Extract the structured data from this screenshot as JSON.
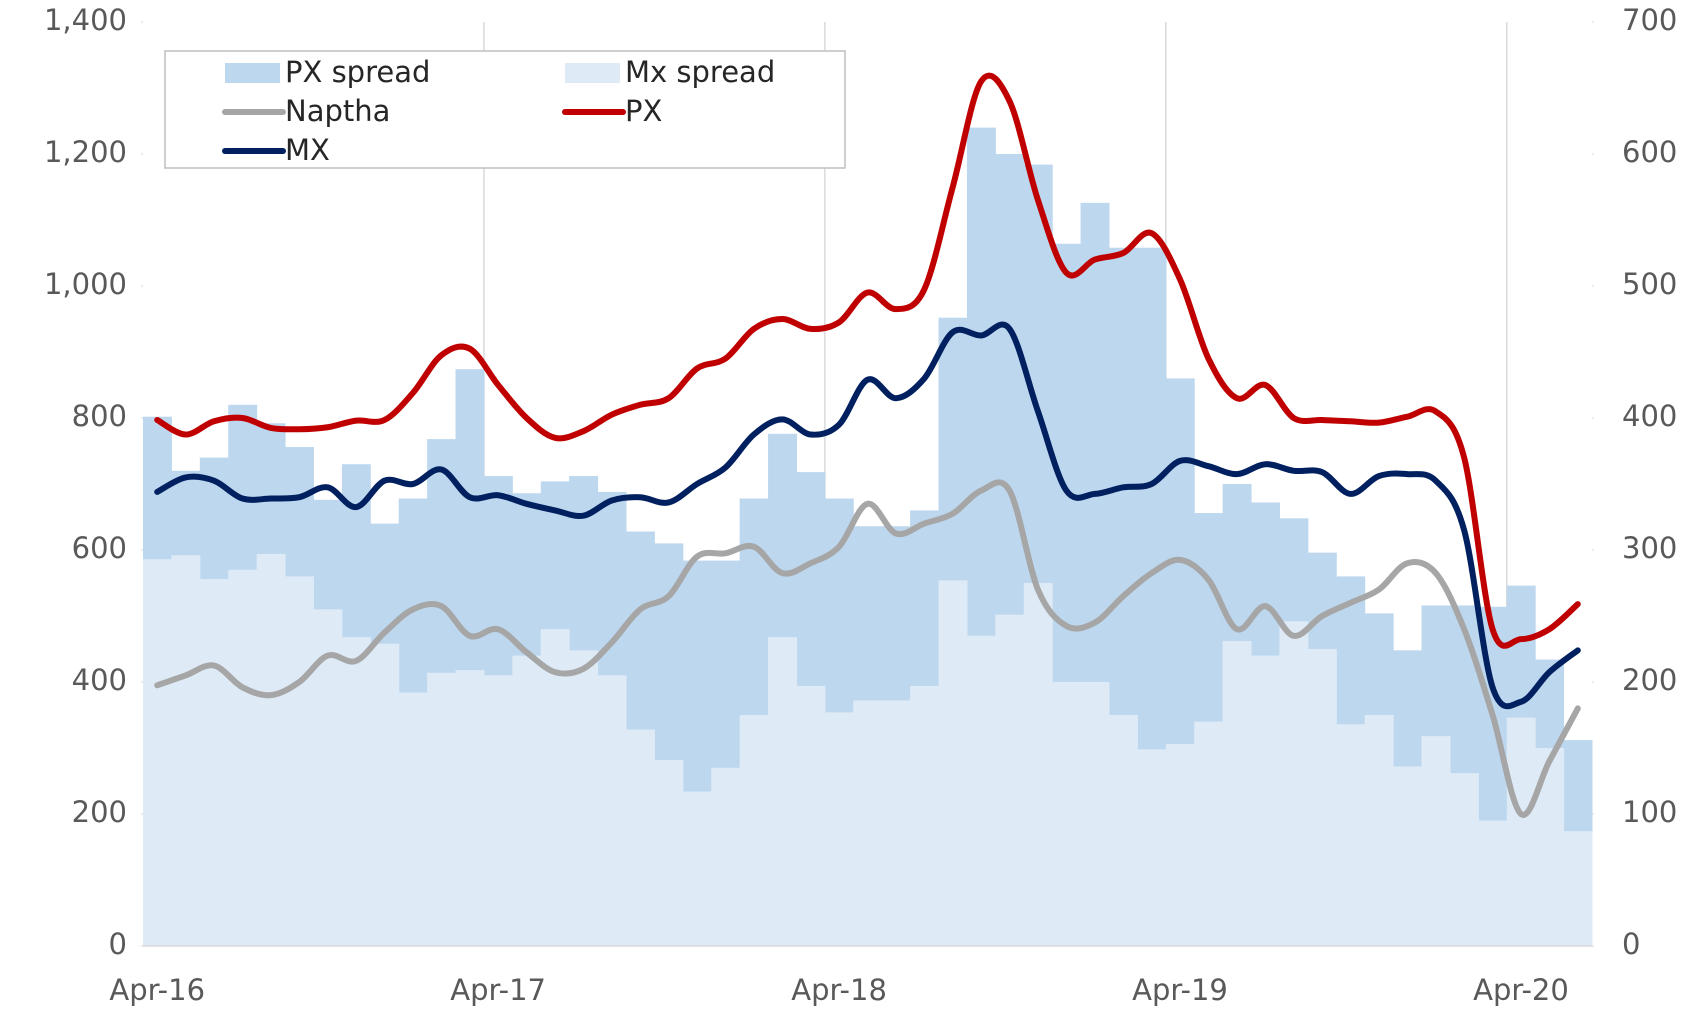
{
  "chart_data": {
    "type": "bar-line",
    "categories": [
      "Apr-16",
      null,
      null,
      null,
      null,
      null,
      null,
      null,
      null,
      null,
      null,
      null,
      "Apr-17",
      null,
      null,
      null,
      null,
      null,
      null,
      null,
      null,
      null,
      null,
      null,
      "Apr-18",
      null,
      null,
      null,
      null,
      null,
      null,
      null,
      null,
      null,
      null,
      null,
      "Apr-19",
      null,
      null,
      null,
      null,
      null,
      null,
      null,
      null,
      null,
      null,
      null,
      "Apr-20",
      null,
      null
    ],
    "ylim": [
      0,
      1400
    ],
    "yticks": [
      0,
      200,
      400,
      600,
      800,
      {
        "value": 1000,
        "label": "1,000"
      },
      {
        "value": 1200,
        "label": "1,200"
      },
      {
        "value": 1400,
        "label": "1,400"
      }
    ],
    "y2lim": [
      0,
      700
    ],
    "y2ticks": [
      0,
      100,
      200,
      300,
      400,
      500,
      600,
      700
    ],
    "xgrid": true,
    "legend": "top-left",
    "series": [
      {
        "name": "PX spread",
        "kind": "bar",
        "axis": "y2",
        "color": "#bdd7ee",
        "values": [
          401,
          360,
          370,
          410,
          396,
          378,
          338,
          365,
          320,
          339,
          384,
          437,
          356,
          343,
          352,
          356,
          344,
          314,
          305,
          292,
          292,
          339,
          388,
          359,
          339,
          318,
          318,
          330,
          476,
          620,
          600,
          592,
          532,
          563,
          529,
          529,
          430,
          328,
          350,
          336,
          324,
          298,
          280,
          252,
          224,
          258,
          258,
          257,
          273,
          217,
          156
        ]
      },
      {
        "name": "Mx spread",
        "kind": "bar",
        "axis": "y2",
        "color": "#deebf7",
        "values": [
          293,
          296,
          278,
          285,
          297,
          280,
          255,
          234,
          229,
          192,
          207,
          209,
          205,
          220,
          240,
          224,
          205,
          164,
          141,
          117,
          135,
          175,
          234,
          197,
          177,
          186,
          186,
          197,
          277,
          235,
          251,
          275,
          200,
          200,
          175,
          149,
          153,
          170,
          231,
          220,
          246,
          225,
          168,
          175,
          136,
          159,
          131,
          95,
          173,
          150,
          87
        ]
      },
      {
        "name": "Naptha",
        "kind": "line",
        "color": "#a6a6a6",
        "values": [
          395,
          410,
          425,
          392,
          380,
          400,
          440,
          432,
          475,
          510,
          515,
          470,
          480,
          445,
          415,
          420,
          460,
          510,
          530,
          590,
          595,
          605,
          565,
          580,
          605,
          670,
          625,
          640,
          655,
          690,
          690,
          540,
          485,
          490,
          530,
          565,
          585,
          555,
          480,
          515,
          470,
          500,
          520,
          540,
          580,
          565,
          480,
          350,
          200,
          280,
          360
        ]
      },
      {
        "name": "PX",
        "kind": "line",
        "color": "#c00000",
        "values": [
          797,
          775,
          795,
          800,
          785,
          783,
          786,
          796,
          797,
          838,
          895,
          905,
          850,
          800,
          770,
          780,
          805,
          820,
          830,
          875,
          890,
          935,
          950,
          935,
          945,
          990,
          965,
          995,
          1150,
          1310,
          1280,
          1130,
          1020,
          1040,
          1050,
          1080,
          1010,
          890,
          830,
          850,
          800,
          797,
          795,
          793,
          802,
          810,
          740,
          480,
          465,
          480,
          518
        ]
      },
      {
        "name": "MX",
        "kind": "line",
        "color": "#002060",
        "values": [
          688,
          710,
          705,
          678,
          678,
          680,
          695,
          665,
          705,
          700,
          722,
          680,
          683,
          670,
          660,
          652,
          675,
          680,
          672,
          700,
          725,
          775,
          798,
          775,
          790,
          858,
          830,
          860,
          930,
          925,
          935,
          810,
          690,
          685,
          695,
          700,
          735,
          727,
          715,
          730,
          720,
          718,
          685,
          712,
          715,
          705,
          630,
          392,
          370,
          415,
          448
        ]
      }
    ]
  }
}
